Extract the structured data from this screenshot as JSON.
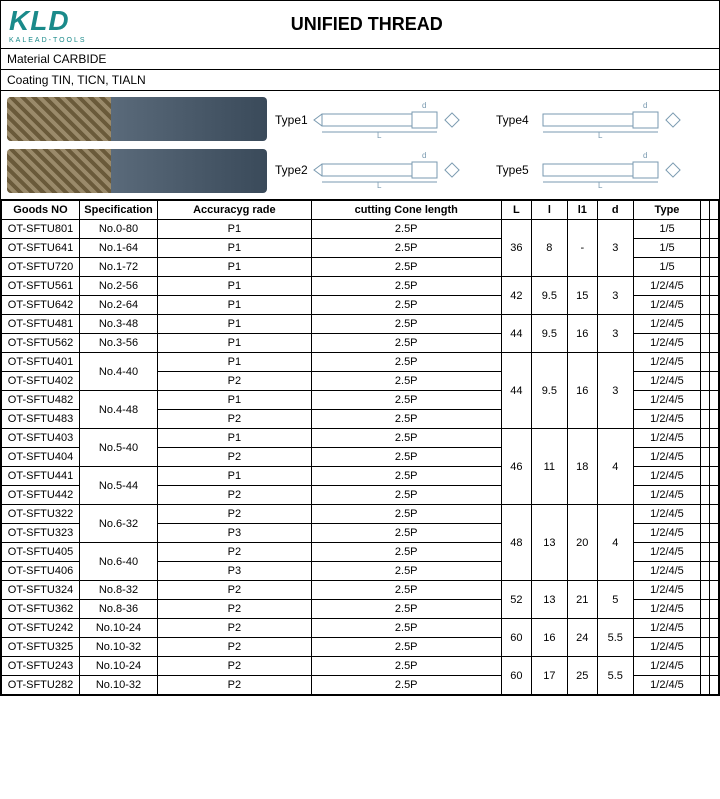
{
  "logo": {
    "main": "KLD",
    "sub": "KALEAD-TOOLS"
  },
  "title": "UNIFIED THREAD",
  "material_row": "Material  CARBIDE",
  "coating_row": "Coating   TIN,  TICN,  TIALN",
  "type_labels": [
    "Type1",
    "Type2",
    "Type4",
    "Type5"
  ],
  "diagram_letters": {
    "d": "d",
    "L": "L",
    "l": "l",
    "l1": "l1",
    "k": "k"
  },
  "headers": [
    "Goods NO",
    "Specification",
    "Accuracyg rade",
    "cutting Cone length",
    "L",
    "l",
    "l1",
    "d",
    "Type",
    "",
    ""
  ],
  "groups": [
    {
      "L": "36",
      "l": "8",
      "l1": "-",
      "d": "3",
      "rows": [
        {
          "goods": "OT-SFTU801",
          "spec": "No.0-80",
          "spec_span": 1,
          "acc": "P1",
          "cone": "2.5P",
          "type": "1/5"
        },
        {
          "goods": "OT-SFTU641",
          "spec": "No.1-64",
          "spec_span": 1,
          "acc": "P1",
          "cone": "2.5P",
          "type": "1/5"
        },
        {
          "goods": "OT-SFTU720",
          "spec": "No.1-72",
          "spec_span": 1,
          "acc": "P1",
          "cone": "2.5P",
          "type": "1/5"
        }
      ]
    },
    {
      "L": "42",
      "l": "9.5",
      "l1": "15",
      "d": "3",
      "rows": [
        {
          "goods": "OT-SFTU561",
          "spec": "No.2-56",
          "spec_span": 1,
          "acc": "P1",
          "cone": "2.5P",
          "type": "1/2/4/5"
        },
        {
          "goods": "OT-SFTU642",
          "spec": "No.2-64",
          "spec_span": 1,
          "acc": "P1",
          "cone": "2.5P",
          "type": "1/2/4/5"
        }
      ]
    },
    {
      "L": "44",
      "l": "9.5",
      "l1": "16",
      "d": "3",
      "rows": [
        {
          "goods": "OT-SFTU481",
          "spec": "No.3-48",
          "spec_span": 1,
          "acc": "P1",
          "cone": "2.5P",
          "type": "1/2/4/5"
        },
        {
          "goods": "OT-SFTU562",
          "spec": "No.3-56",
          "spec_span": 1,
          "acc": "P1",
          "cone": "2.5P",
          "type": "1/2/4/5"
        }
      ]
    },
    {
      "L": "44",
      "l": "9.5",
      "l1": "16",
      "d": "3",
      "rows": [
        {
          "goods": "OT-SFTU401",
          "spec": "No.4-40",
          "spec_span": 2,
          "acc": "P1",
          "cone": "2.5P",
          "type": "1/2/4/5"
        },
        {
          "goods": "OT-SFTU402",
          "acc": "P2",
          "cone": "2.5P",
          "type": "1/2/4/5"
        },
        {
          "goods": "OT-SFTU482",
          "spec": "No.4-48",
          "spec_span": 2,
          "acc": "P1",
          "cone": "2.5P",
          "type": "1/2/4/5"
        },
        {
          "goods": "OT-SFTU483",
          "acc": "P2",
          "cone": "2.5P",
          "type": "1/2/4/5"
        }
      ]
    },
    {
      "L": "46",
      "l": "11",
      "l1": "18",
      "d": "4",
      "rows": [
        {
          "goods": "OT-SFTU403",
          "spec": "No.5-40",
          "spec_span": 2,
          "acc": "P1",
          "cone": "2.5P",
          "type": "1/2/4/5"
        },
        {
          "goods": "OT-SFTU404",
          "acc": "P2",
          "cone": "2.5P",
          "type": "1/2/4/5"
        },
        {
          "goods": "OT-SFTU441",
          "spec": "No.5-44",
          "spec_span": 2,
          "acc": "P1",
          "cone": "2.5P",
          "type": "1/2/4/5"
        },
        {
          "goods": "OT-SFTU442",
          "acc": "P2",
          "cone": "2.5P",
          "type": "1/2/4/5"
        }
      ]
    },
    {
      "L": "48",
      "l": "13",
      "l1": "20",
      "d": "4",
      "rows": [
        {
          "goods": "OT-SFTU322",
          "spec": "No.6-32",
          "spec_span": 2,
          "acc": "P2",
          "cone": "2.5P",
          "type": "1/2/4/5"
        },
        {
          "goods": "OT-SFTU323",
          "acc": "P3",
          "cone": "2.5P",
          "type": "1/2/4/5"
        },
        {
          "goods": "OT-SFTU405",
          "spec": "No.6-40",
          "spec_span": 2,
          "acc": "P2",
          "cone": "2.5P",
          "type": "1/2/4/5"
        },
        {
          "goods": "OT-SFTU406",
          "acc": "P3",
          "cone": "2.5P",
          "type": "1/2/4/5"
        }
      ]
    },
    {
      "L": "52",
      "l": "13",
      "l1": "21",
      "d": "5",
      "rows": [
        {
          "goods": "OT-SFTU324",
          "spec": "No.8-32",
          "spec_span": 1,
          "acc": "P2",
          "cone": "2.5P",
          "type": "1/2/4/5"
        },
        {
          "goods": "OT-SFTU362",
          "spec": "No.8-36",
          "spec_span": 1,
          "acc": "P2",
          "cone": "2.5P",
          "type": "1/2/4/5"
        }
      ]
    },
    {
      "L": "60",
      "l": "16",
      "l1": "24",
      "d": "5.5",
      "rows": [
        {
          "goods": "OT-SFTU242",
          "spec": "No.10-24",
          "spec_span": 1,
          "acc": "P2",
          "cone": "2.5P",
          "type": "1/2/4/5"
        },
        {
          "goods": "OT-SFTU325",
          "spec": "No.10-32",
          "spec_span": 1,
          "acc": "P2",
          "cone": "2.5P",
          "type": "1/2/4/5"
        }
      ]
    },
    {
      "L": "60",
      "l": "17",
      "l1": "25",
      "d": "5.5",
      "rows": [
        {
          "goods": "OT-SFTU243",
          "spec": "No.10-24",
          "spec_span": 1,
          "acc": "P2",
          "cone": "2.5P",
          "type": "1/2/4/5"
        },
        {
          "goods": "OT-SFTU282",
          "spec": "No.10-32",
          "spec_span": 1,
          "acc": "P2",
          "cone": "2.5P",
          "type": "1/2/4/5"
        }
      ]
    }
  ],
  "colors": {
    "brand": "#1a8a8a",
    "border": "#000000",
    "diagram": "#7a9ab0"
  }
}
